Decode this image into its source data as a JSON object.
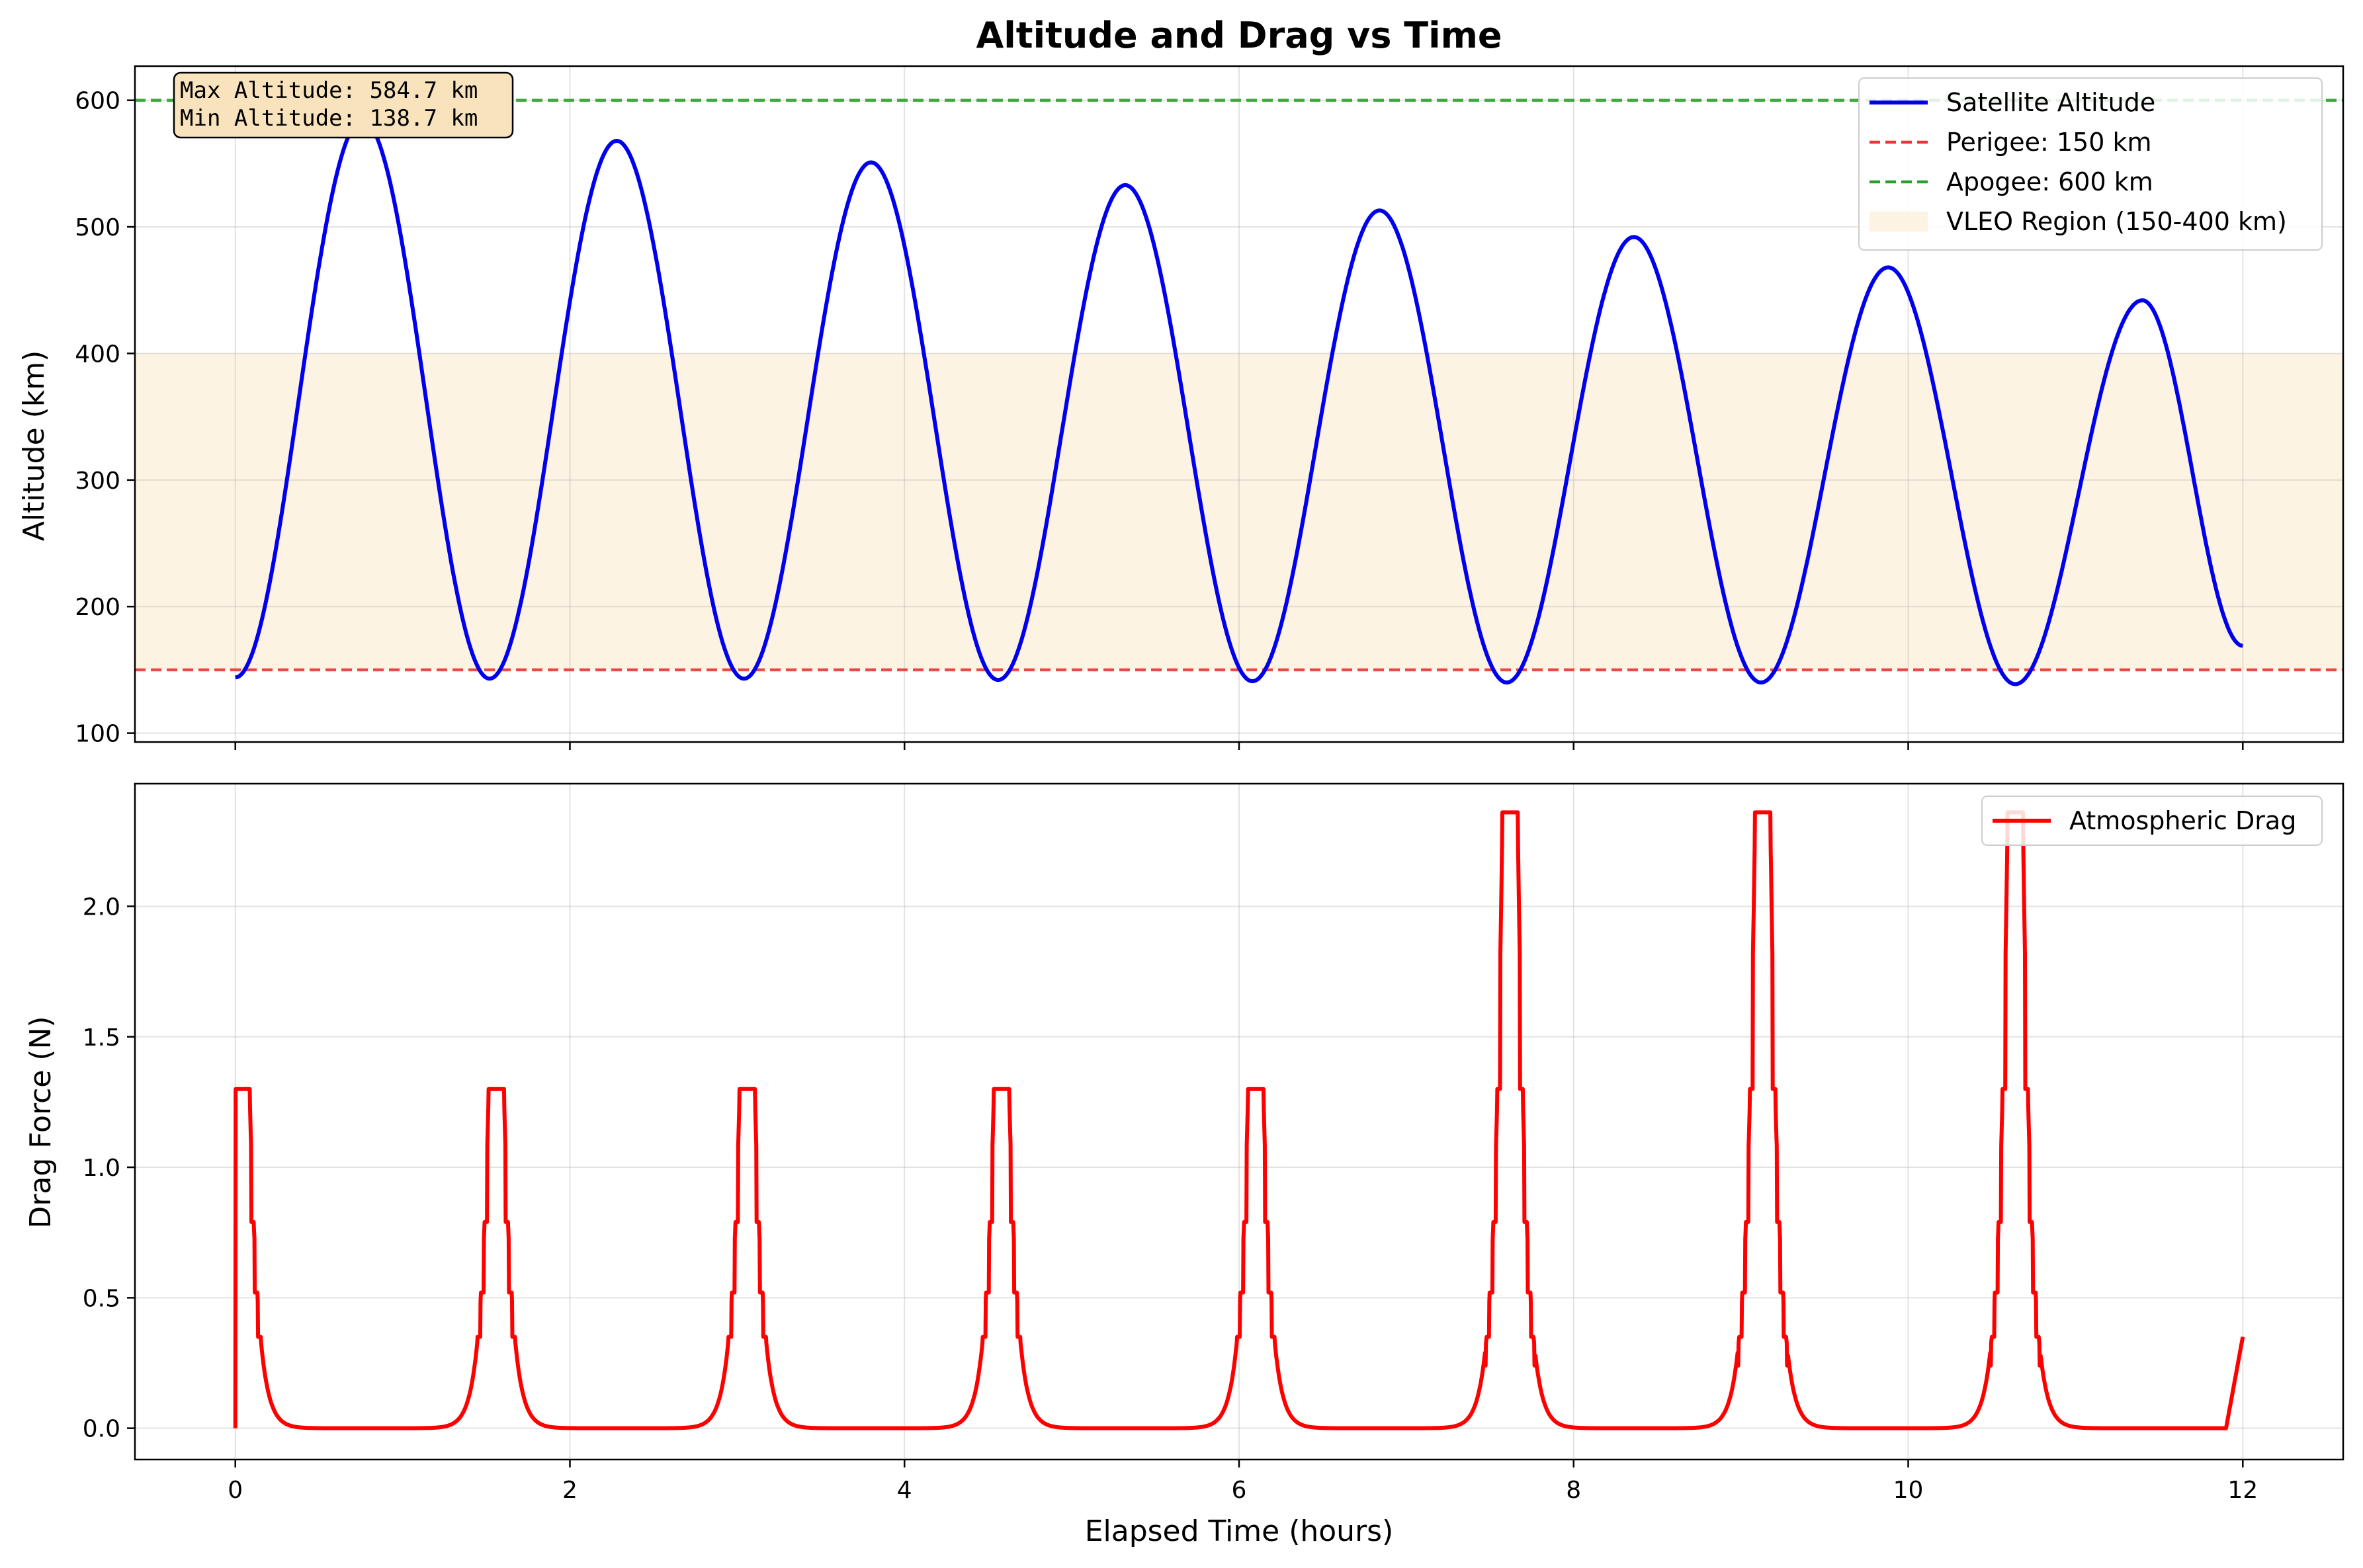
{
  "title": "Altitude and Drag vs Time",
  "colors": {
    "altitude": "#0000ee",
    "perigee": "#ee3333",
    "apogee": "#2ca02c",
    "vleo": "#fdf3e2",
    "drag": "#ff0000",
    "annotation_bg": "#f9e3bc"
  },
  "chart_data": [
    {
      "type": "line",
      "ylabel": "Altitude (km)",
      "xlim": [
        -0.6,
        12.6
      ],
      "ylim": [
        93,
        627
      ],
      "yticks": [
        100,
        200,
        300,
        400,
        500,
        600
      ],
      "grid": true,
      "legend_position": "top-right",
      "annotation": [
        "Max Altitude: 584.7 km",
        "Min Altitude: 138.7 km"
      ],
      "orbit_period_hours": 1.52,
      "series": [
        {
          "name": "Satellite Altitude",
          "style": "solid",
          "points": [
            [
              0.0,
              144
            ],
            [
              0.76,
              584.7
            ],
            [
              1.52,
              143
            ],
            [
              2.28,
              568
            ],
            [
              3.04,
              143
            ],
            [
              3.8,
              551
            ],
            [
              4.56,
              142
            ],
            [
              5.32,
              533
            ],
            [
              6.08,
              141
            ],
            [
              6.84,
              513
            ],
            [
              7.6,
              140
            ],
            [
              8.36,
              492
            ],
            [
              9.12,
              140
            ],
            [
              9.88,
              468
            ],
            [
              10.64,
              138.7
            ],
            [
              11.4,
              442
            ],
            [
              12.0,
              169
            ]
          ]
        },
        {
          "name": "Perigee: 150 km",
          "style": "dashed",
          "value": 150
        },
        {
          "name": "Apogee: 600 km",
          "style": "dashed",
          "value": 600
        },
        {
          "name": "VLEO Region (150-400 km)",
          "style": "band",
          "range": [
            150,
            400
          ]
        }
      ]
    },
    {
      "type": "line",
      "xlabel": "Elapsed Time (hours)",
      "ylabel": "Drag Force (N)",
      "xlim": [
        -0.6,
        12.6
      ],
      "ylim": [
        -0.12,
        2.47
      ],
      "xticks": [
        0,
        2,
        4,
        6,
        8,
        10,
        12
      ],
      "yticks": [
        0.0,
        0.5,
        1.0,
        1.5,
        2.0
      ],
      "grid": true,
      "legend_position": "top-right",
      "series": [
        {
          "name": "Atmospheric Drag",
          "peaks": [
            {
              "t": 0.04,
              "value": 1.3
            },
            {
              "t": 1.56,
              "value": 1.3
            },
            {
              "t": 3.06,
              "value": 1.3
            },
            {
              "t": 4.58,
              "value": 1.3
            },
            {
              "t": 6.1,
              "value": 1.3
            },
            {
              "t": 7.62,
              "value": 2.36
            },
            {
              "t": 9.13,
              "value": 2.36
            },
            {
              "t": 10.64,
              "value": 2.36
            }
          ],
          "end_value": 0.35
        }
      ]
    }
  ]
}
